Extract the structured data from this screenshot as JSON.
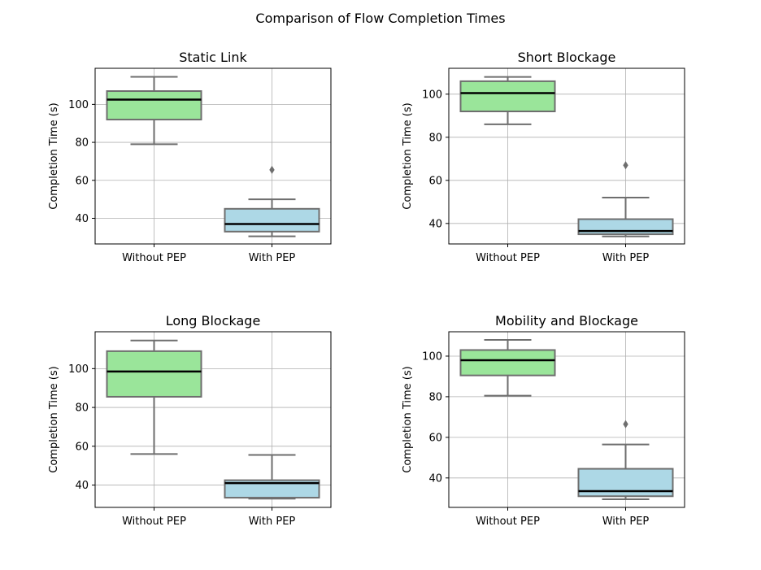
{
  "figure": {
    "title": "Comparison of Flow Completion Times",
    "colors": {
      "without_pep": "#9ae59a",
      "with_pep": "#add8e6",
      "box_edge": "#6e6e6e",
      "median": "#000000",
      "grid": "#b0b0b0"
    }
  },
  "chart_data": [
    {
      "type": "box",
      "title": "Static Link",
      "ylabel": "Completion Time (s)",
      "categories": [
        "Without PEP",
        "With PEP"
      ],
      "ylim": [
        26.5,
        119
      ],
      "yticks": [
        40,
        60,
        80,
        100
      ],
      "grid": true,
      "boxes": [
        {
          "category": "Without PEP",
          "whislo": 79,
          "q1": 92,
          "med": 102.5,
          "q3": 107,
          "whishi": 114.5,
          "fliers": []
        },
        {
          "category": "With PEP",
          "whislo": 30.5,
          "q1": 33,
          "med": 37,
          "q3": 45,
          "whishi": 50,
          "fliers": [
            65.5
          ]
        }
      ]
    },
    {
      "type": "box",
      "title": "Short Blockage",
      "ylabel": "Completion Time (s)",
      "categories": [
        "Without PEP",
        "With PEP"
      ],
      "ylim": [
        30.5,
        112
      ],
      "yticks": [
        40,
        60,
        80,
        100
      ],
      "grid": true,
      "boxes": [
        {
          "category": "Without PEP",
          "whislo": 86,
          "q1": 92,
          "med": 100.5,
          "q3": 106,
          "whishi": 108,
          "fliers": []
        },
        {
          "category": "With PEP",
          "whislo": 34,
          "q1": 35,
          "med": 36.5,
          "q3": 42,
          "whishi": 52,
          "fliers": [
            67
          ]
        }
      ]
    },
    {
      "type": "box",
      "title": "Long Blockage",
      "ylabel": "Completion Time (s)",
      "categories": [
        "Without PEP",
        "With PEP"
      ],
      "ylim": [
        28.5,
        119
      ],
      "yticks": [
        40,
        60,
        80,
        100
      ],
      "grid": true,
      "boxes": [
        {
          "category": "Without PEP",
          "whislo": 56,
          "q1": 85.5,
          "med": 98.5,
          "q3": 109,
          "whishi": 114.5,
          "fliers": []
        },
        {
          "category": "With PEP",
          "whislo": 33,
          "q1": 33.5,
          "med": 41,
          "q3": 42.5,
          "whishi": 55.5,
          "fliers": []
        }
      ]
    },
    {
      "type": "box",
      "title": "Mobility and Blockage",
      "ylabel": "Completion Time (s)",
      "categories": [
        "Without PEP",
        "With PEP"
      ],
      "ylim": [
        25.5,
        112
      ],
      "yticks": [
        40,
        60,
        80,
        100
      ],
      "grid": true,
      "boxes": [
        {
          "category": "Without PEP",
          "whislo": 80.5,
          "q1": 90.5,
          "med": 98,
          "q3": 103,
          "whishi": 108,
          "fliers": []
        },
        {
          "category": "With PEP",
          "whislo": 29.5,
          "q1": 31,
          "med": 33.5,
          "q3": 44.5,
          "whishi": 56.5,
          "fliers": [
            66.5
          ]
        }
      ]
    }
  ]
}
